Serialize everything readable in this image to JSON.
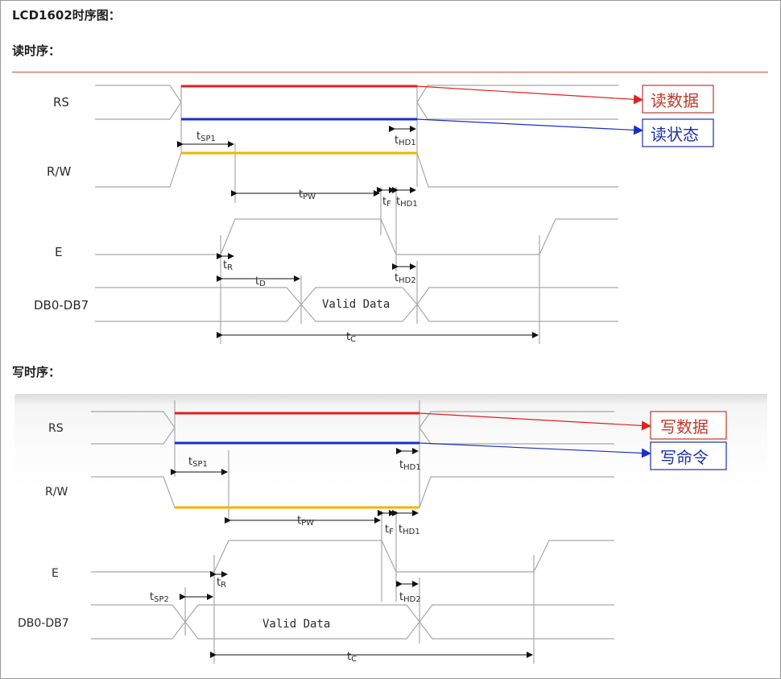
{
  "title": "LCD1602时序图：",
  "read": {
    "heading": "读时序：",
    "signals": {
      "rs": "RS",
      "rw": "R/W",
      "e": "E",
      "db": "DB0-DB7"
    },
    "timings": {
      "tsp1": {
        "t": "t",
        "sub": "SP1"
      },
      "thd1a": {
        "t": "t",
        "sub": "HD1"
      },
      "tpw": {
        "t": "t",
        "sub": "PW"
      },
      "tf": {
        "t": "t",
        "sub": "F"
      },
      "thd1b": {
        "t": "t",
        "sub": "HD1"
      },
      "tr": {
        "t": "t",
        "sub": "R"
      },
      "td": {
        "t": "t",
        "sub": "D"
      },
      "thd2": {
        "t": "t",
        "sub": "HD2"
      },
      "tc": {
        "t": "t",
        "sub": "C"
      }
    },
    "valid_data": "Valid Data",
    "legend": {
      "red": "读数据",
      "blue": "读状态"
    }
  },
  "write": {
    "heading": "写时序：",
    "signals": {
      "rs": "RS",
      "rw": "R/W",
      "e": "E",
      "db": "DB0-DB7"
    },
    "timings": {
      "tsp1": {
        "t": "t",
        "sub": "SP1"
      },
      "thd1a": {
        "t": "t",
        "sub": "HD1"
      },
      "tpw": {
        "t": "t",
        "sub": "PW"
      },
      "tf": {
        "t": "t",
        "sub": "F"
      },
      "thd1b": {
        "t": "t",
        "sub": "HD1"
      },
      "tr": {
        "t": "t",
        "sub": "R"
      },
      "tsp2": {
        "t": "t",
        "sub": "SP2"
      },
      "thd2": {
        "t": "t",
        "sub": "HD2"
      },
      "tc": {
        "t": "t",
        "sub": "C"
      }
    },
    "valid_data": "Valid Data",
    "legend": {
      "red": "写数据",
      "blue": "写命令"
    }
  },
  "colors": {
    "red": "#e02020",
    "blue": "#1a2fc8",
    "yellow": "#f0b400",
    "wave": "#a8a8a8",
    "rule": "#d9442e"
  }
}
